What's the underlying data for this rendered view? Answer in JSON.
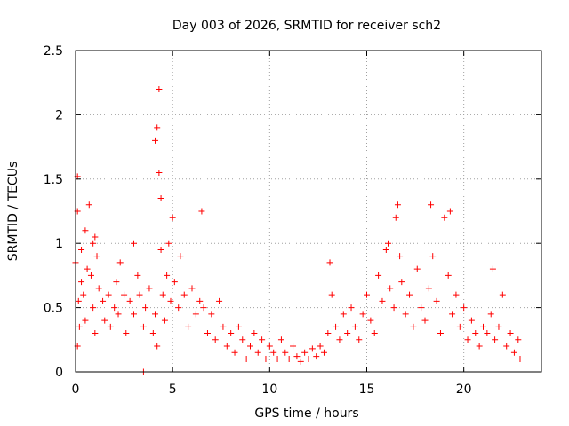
{
  "chart_data": {
    "type": "scatter",
    "title": "Day 003 of 2026, SRMTID for receiver sch2",
    "xlabel": "GPS time / hours",
    "ylabel": "SRMTID / TECUs",
    "xlim": [
      0,
      24
    ],
    "ylim": [
      0,
      2.5
    ],
    "xticks": [
      0,
      5,
      10,
      15,
      20
    ],
    "xtick_labels": [
      "0",
      "5",
      "10",
      "15",
      "20"
    ],
    "yticks": [
      0,
      0.5,
      1,
      1.5,
      2,
      2.5
    ],
    "ytick_labels": [
      "0",
      "0.5",
      "1",
      "1.5",
      "2",
      "2.5"
    ],
    "grid": true,
    "marker": "+",
    "color": "#ff0000",
    "series": [
      {
        "name": "sch2",
        "x": [
          0.0,
          0.1,
          0.1,
          0.1,
          0.15,
          0.2,
          0.3,
          0.3,
          0.4,
          0.5,
          0.5,
          0.6,
          0.7,
          0.8,
          0.9,
          0.9,
          1.0,
          1.0,
          1.1,
          1.2,
          1.4,
          1.5,
          1.7,
          1.8,
          2.0,
          2.1,
          2.2,
          2.3,
          2.5,
          2.6,
          2.8,
          3.0,
          3.0,
          3.2,
          3.3,
          3.5,
          3.6,
          3.8,
          4.0,
          4.1,
          4.1,
          4.2,
          4.2,
          4.3,
          4.3,
          4.4,
          4.4,
          4.5,
          4.6,
          4.7,
          4.8,
          4.9,
          5.0,
          5.1,
          5.3,
          5.4,
          5.6,
          5.8,
          6.0,
          6.2,
          6.4,
          6.5,
          6.6,
          6.8,
          7.0,
          7.2,
          7.4,
          7.6,
          7.8,
          8.0,
          8.2,
          8.4,
          8.6,
          8.8,
          9.0,
          9.2,
          9.4,
          9.6,
          9.8,
          10.0,
          10.2,
          10.4,
          10.6,
          10.8,
          11.0,
          11.2,
          11.4,
          11.6,
          11.8,
          12.0,
          12.2,
          12.4,
          12.6,
          12.8,
          13.0,
          13.1,
          13.2,
          13.4,
          13.6,
          13.8,
          14.0,
          14.2,
          14.4,
          14.6,
          14.8,
          15.0,
          15.2,
          15.4,
          15.6,
          15.8,
          16.0,
          16.1,
          16.2,
          16.4,
          16.5,
          16.6,
          16.7,
          16.8,
          17.0,
          17.2,
          17.4,
          17.6,
          17.8,
          18.0,
          18.2,
          18.3,
          18.4,
          18.6,
          18.8,
          19.0,
          19.2,
          19.3,
          19.4,
          19.6,
          19.8,
          20.0,
          20.2,
          20.4,
          20.6,
          20.8,
          21.0,
          21.2,
          21.4,
          21.5,
          21.6,
          21.8,
          22.0,
          22.2,
          22.4,
          22.6,
          22.8,
          22.9,
          3.5
        ],
        "y": [
          0.85,
          1.52,
          1.25,
          0.2,
          0.55,
          0.35,
          0.7,
          0.95,
          0.6,
          1.1,
          0.4,
          0.8,
          1.3,
          0.75,
          1.0,
          0.5,
          1.05,
          0.3,
          0.9,
          0.65,
          0.55,
          0.4,
          0.6,
          0.35,
          0.5,
          0.7,
          0.45,
          0.85,
          0.6,
          0.3,
          0.55,
          0.45,
          1.0,
          0.75,
          0.6,
          0.35,
          0.5,
          0.65,
          0.3,
          0.45,
          1.8,
          1.9,
          0.2,
          2.2,
          1.55,
          0.95,
          1.35,
          0.6,
          0.4,
          0.75,
          1.0,
          0.55,
          1.2,
          0.7,
          0.5,
          0.9,
          0.6,
          0.35,
          0.65,
          0.45,
          0.55,
          1.25,
          0.5,
          0.3,
          0.45,
          0.25,
          0.55,
          0.35,
          0.2,
          0.3,
          0.15,
          0.35,
          0.25,
          0.1,
          0.2,
          0.3,
          0.15,
          0.25,
          0.1,
          0.2,
          0.15,
          0.1,
          0.25,
          0.15,
          0.1,
          0.2,
          0.12,
          0.08,
          0.15,
          0.1,
          0.18,
          0.12,
          0.2,
          0.15,
          0.3,
          0.85,
          0.6,
          0.35,
          0.25,
          0.45,
          0.3,
          0.5,
          0.35,
          0.25,
          0.45,
          0.6,
          0.4,
          0.3,
          0.75,
          0.55,
          0.95,
          1.0,
          0.65,
          0.5,
          1.2,
          1.3,
          0.9,
          0.7,
          0.45,
          0.6,
          0.35,
          0.8,
          0.5,
          0.4,
          0.65,
          1.3,
          0.9,
          0.55,
          0.3,
          1.2,
          0.75,
          1.25,
          0.45,
          0.6,
          0.35,
          0.5,
          0.25,
          0.4,
          0.3,
          0.2,
          0.35,
          0.3,
          0.45,
          0.8,
          0.25,
          0.35,
          0.6,
          0.2,
          0.3,
          0.15,
          0.25,
          0.1,
          0.0
        ]
      }
    ]
  }
}
